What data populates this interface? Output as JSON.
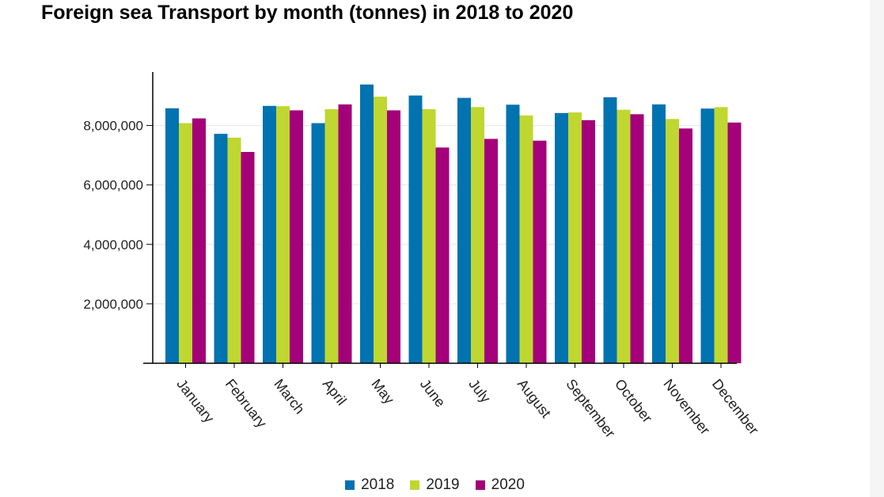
{
  "chart_data": {
    "type": "bar",
    "title": "Foreign sea Transport by month (tonnes) in 2018 to 2020",
    "xlabel": "",
    "ylabel": "",
    "categories": [
      "January",
      "February",
      "March",
      "April",
      "May",
      "June",
      "July",
      "August",
      "September",
      "October",
      "November",
      "December"
    ],
    "ylim": [
      0,
      9800000
    ],
    "yticks": [
      2000000,
      4000000,
      6000000,
      8000000
    ],
    "ytick_labels": [
      "2,000,000",
      "4,000,000",
      "6,000,000",
      "8,000,000"
    ],
    "grid": true,
    "legend": "bottom",
    "series": [
      {
        "name": "2018",
        "color": "#0073b0",
        "values": [
          8580000,
          7720000,
          8660000,
          8080000,
          9380000,
          9010000,
          8930000,
          8700000,
          8420000,
          8950000,
          8710000,
          8570000
        ]
      },
      {
        "name": "2019",
        "color": "#bfd730",
        "values": [
          8080000,
          7590000,
          8650000,
          8550000,
          8970000,
          8550000,
          8620000,
          8340000,
          8440000,
          8530000,
          8220000,
          8620000
        ]
      },
      {
        "name": "2020",
        "color": "#a3007a",
        "values": [
          8240000,
          7110000,
          8510000,
          8710000,
          8510000,
          7260000,
          7550000,
          7490000,
          8180000,
          8380000,
          7900000,
          8100000
        ]
      }
    ]
  }
}
